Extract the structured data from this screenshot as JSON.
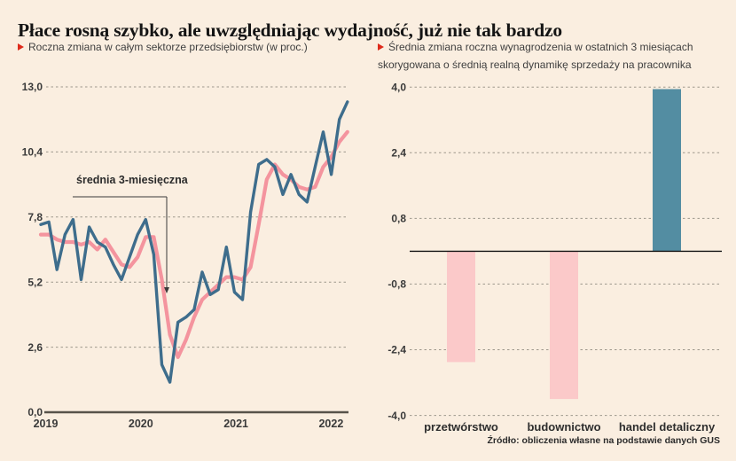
{
  "page": {
    "title": "Płace rosną szybko, ale uwzględniając wydajność, już nie tak bardzo",
    "source": "Źródło: obliczenia własne na podstawie danych GUS",
    "colors": {
      "background": "#faeee0",
      "accent_red": "#de2a1b",
      "line_blue": "#3e6d8c",
      "line_pink": "#f4949e",
      "bar_pink": "#fbc9c9",
      "bar_teal": "#538da2"
    }
  },
  "chart_data": [
    {
      "type": "line",
      "note": "Roczna zmiana w całym sektorze przedsiębiorstw (w proc.)",
      "annotation": "średnia 3-miesięczna",
      "x_ticks": [
        "2019",
        "2020",
        "2021",
        "2022"
      ],
      "x_unit": "month",
      "x_start": "2019-01",
      "y_axis": {
        "labels": [
          "13,0",
          "10,4",
          "7,8",
          "5,2",
          "2,6",
          "0,0"
        ],
        "values": [
          13,
          10.4,
          7.8,
          5.2,
          2.6,
          0
        ]
      },
      "ylim": [
        0,
        13
      ],
      "grid": "dashed-horizontal",
      "series": [
        {
          "id": "wage-monthly",
          "name": "roczna zmiana płac",
          "color": "#3e6d8c",
          "values": [
            7.5,
            7.6,
            5.7,
            7.1,
            7.7,
            5.3,
            7.4,
            6.8,
            6.6,
            5.9,
            5.3,
            6.2,
            7.1,
            7.7,
            6.3,
            1.9,
            1.2,
            3.6,
            3.8,
            4.1,
            5.6,
            4.7,
            4.9,
            6.6,
            4.8,
            4.5,
            8.0,
            9.9,
            10.1,
            9.8,
            8.7,
            9.5,
            8.7,
            8.4,
            9.8,
            11.2,
            9.5,
            11.7,
            12.4
          ]
        },
        {
          "id": "wage-avg3m",
          "name": "średnia 3-miesięczna",
          "color": "#f4949e",
          "values": [
            7.1,
            7.1,
            6.9,
            6.8,
            6.8,
            6.7,
            6.8,
            6.5,
            6.9,
            6.4,
            5.9,
            5.8,
            6.2,
            7.0,
            7.0,
            5.3,
            3.1,
            2.2,
            2.9,
            3.8,
            4.5,
            4.8,
            5.1,
            5.4,
            5.4,
            5.3,
            5.8,
            7.5,
            9.3,
            9.9,
            9.5,
            9.3,
            9.0,
            8.9,
            9.0,
            9.8,
            10.2,
            10.8,
            11.2
          ]
        }
      ]
    },
    {
      "type": "bar",
      "note_line1": "Średnia zmiana roczna wynagrodzenia w ostatnich 3 miesiącach",
      "note_line2": "skorygowana o średnią realną dynamikę sprzedaży na pracownika",
      "categories": [
        "przetwórstwo",
        "budownictwo",
        "handel detaliczny"
      ],
      "values": [
        -2.7,
        -3.6,
        3.95
      ],
      "bar_colors": [
        "#fbc9c9",
        "#fbc9c9",
        "#538da2"
      ],
      "y_axis": {
        "labels": [
          "4,0",
          "2,4",
          "0,8",
          "-0,8",
          "-2,4",
          "-4,0"
        ],
        "values": [
          4,
          2.4,
          0.8,
          -0.8,
          -2.4,
          -4
        ]
      },
      "ylim": [
        -4,
        4
      ],
      "grid": "dashed-horizontal"
    }
  ]
}
